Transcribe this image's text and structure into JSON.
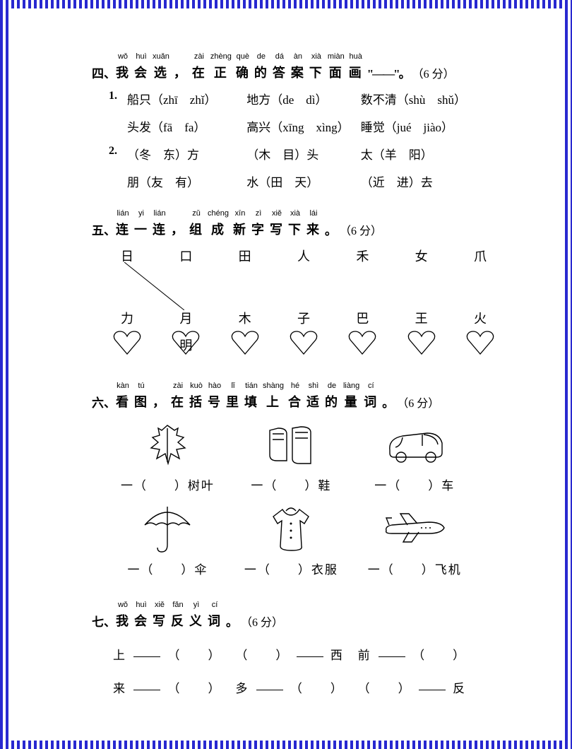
{
  "colors": {
    "border": "#2828d0",
    "text": "#000000",
    "bg": "#ffffff"
  },
  "q4": {
    "prefix": "四、",
    "title_chars": [
      {
        "py": "wǒ",
        "hz": "我",
        "dot": true
      },
      {
        "py": "huì",
        "hz": "会",
        "dot": true
      },
      {
        "py": "xuǎn",
        "hz": "选",
        "dot": true
      },
      {
        "py": "",
        "hz": "，",
        "dot": false
      },
      {
        "py": "zài",
        "hz": "在",
        "dot": true
      },
      {
        "py": "zhèng",
        "hz": "正",
        "dot": true
      },
      {
        "py": "què",
        "hz": "确",
        "dot": true
      },
      {
        "py": "de",
        "hz": "的",
        "dot": true
      },
      {
        "py": "dá",
        "hz": "答",
        "dot": true
      },
      {
        "py": "àn",
        "hz": "案",
        "dot": true
      },
      {
        "py": "xià",
        "hz": "下",
        "dot": true
      },
      {
        "py": "miàn",
        "hz": "面",
        "dot": true
      },
      {
        "py": "huà",
        "hz": "画",
        "dot": true
      }
    ],
    "title_tail": "\"——\"。",
    "points": "（6 分）",
    "rows": [
      {
        "n": "1.",
        "a": "船只（zhī　zhǐ）",
        "b": "地方（de　dì）",
        "c": "数不清（shù　shǔ）"
      },
      {
        "n": "",
        "a": "头发（fā　fa）",
        "b": "高兴（xīng　xìng）",
        "c": "睡觉（jué　jiào）"
      },
      {
        "n": "2.",
        "a": "（冬　东）方",
        "b": "（木　目）头",
        "c": "太（羊　阳）"
      },
      {
        "n": "",
        "a": "朋（友　有）",
        "b": "水（田　天）",
        "c": "（近　进）去"
      }
    ]
  },
  "q5": {
    "prefix": "五、",
    "title_chars": [
      {
        "py": "lián",
        "hz": "连",
        "dot": true
      },
      {
        "py": "yi",
        "hz": "一",
        "dot": true
      },
      {
        "py": "lián",
        "hz": "连",
        "dot": true
      },
      {
        "py": "",
        "hz": "，",
        "dot": false
      },
      {
        "py": "zǔ",
        "hz": "组",
        "dot": true
      },
      {
        "py": "chéng",
        "hz": "成",
        "dot": true
      },
      {
        "py": "xīn",
        "hz": "新",
        "dot": true
      },
      {
        "py": "zì",
        "hz": "字",
        "dot": true
      },
      {
        "py": "xiě",
        "hz": "写",
        "dot": true
      },
      {
        "py": "xià",
        "hz": "下",
        "dot": true
      },
      {
        "py": "lái",
        "hz": "来",
        "dot": true
      }
    ],
    "title_tail": "。",
    "points": "（6 分）",
    "top": [
      "日",
      "口",
      "田",
      "人",
      "禾",
      "女",
      "爪"
    ],
    "bottom": [
      "力",
      "月",
      "木",
      "子",
      "巴",
      "王",
      "火"
    ],
    "example_char": "明",
    "example_from": 0,
    "example_to": 1
  },
  "q6": {
    "prefix": "六、",
    "title_chars": [
      {
        "py": "kàn",
        "hz": "看",
        "dot": true
      },
      {
        "py": "tú",
        "hz": "图",
        "dot": true
      },
      {
        "py": "",
        "hz": "，",
        "dot": false
      },
      {
        "py": "zài",
        "hz": "在",
        "dot": true
      },
      {
        "py": "kuò",
        "hz": "括",
        "dot": true
      },
      {
        "py": "hào",
        "hz": "号",
        "dot": true
      },
      {
        "py": "lǐ",
        "hz": "里",
        "dot": true
      },
      {
        "py": "tián",
        "hz": "填",
        "dot": true
      },
      {
        "py": "shàng",
        "hz": "上",
        "dot": false
      },
      {
        "py": "hé",
        "hz": "合",
        "dot": true
      },
      {
        "py": "shì",
        "hz": "适",
        "dot": true
      },
      {
        "py": "de",
        "hz": "的",
        "dot": true
      },
      {
        "py": "liàng",
        "hz": "量",
        "dot": true
      },
      {
        "py": "cí",
        "hz": "词",
        "dot": true
      }
    ],
    "title_tail": "。",
    "points": "（6 分）",
    "items": [
      {
        "icon": "leaf",
        "label": "一（　　）树叶"
      },
      {
        "icon": "shoes",
        "label": "一（　　）鞋"
      },
      {
        "icon": "car",
        "label": "一（　　）车"
      },
      {
        "icon": "umbrella",
        "label": "一（　　）伞"
      },
      {
        "icon": "clothes",
        "label": "一（　　）衣服"
      },
      {
        "icon": "plane",
        "label": "一（　　）飞机"
      }
    ]
  },
  "q7": {
    "prefix": "七、",
    "title_chars": [
      {
        "py": "wǒ",
        "hz": "我",
        "dot": true
      },
      {
        "py": "huì",
        "hz": "会",
        "dot": true
      },
      {
        "py": "xiě",
        "hz": "写",
        "dot": true
      },
      {
        "py": "fǎn",
        "hz": "反",
        "dot": true
      },
      {
        "py": "yì",
        "hz": "义",
        "dot": true
      },
      {
        "py": "cí",
        "hz": "词",
        "dot": true
      }
    ],
    "title_tail": "。",
    "points": "（6 分）",
    "rows": [
      [
        {
          "l": "上",
          "r": "（　　）"
        },
        {
          "l": "（　　）",
          "r": "西"
        },
        {
          "l": "前",
          "r": "（　　）"
        }
      ],
      [
        {
          "l": "来",
          "r": "（　　）"
        },
        {
          "l": "多",
          "r": "（　　）"
        },
        {
          "l": "（　　）",
          "r": "反"
        }
      ]
    ]
  }
}
